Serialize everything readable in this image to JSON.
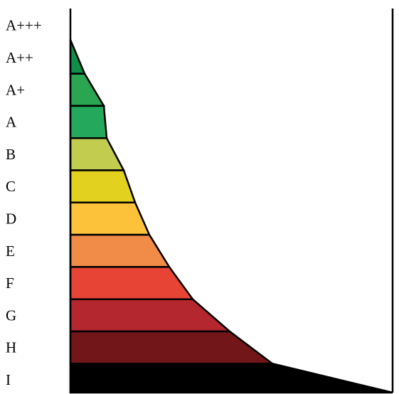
{
  "chart_data": {
    "type": "area",
    "title": "",
    "xlabel": "",
    "ylabel": "",
    "categories": [
      "A+++",
      "A++",
      "A+",
      "A",
      "B",
      "C",
      "D",
      "E",
      "F",
      "G",
      "H",
      "I"
    ],
    "band_colors": [
      "#ffffff",
      "#0f8f4a",
      "#2aa652",
      "#24a85c",
      "#c2cc4e",
      "#e2d21f",
      "#fbc23a",
      "#f08c47",
      "#e84435",
      "#b4272f",
      "#73161a",
      "#000000"
    ],
    "stroke_color": "#000000",
    "grid": false,
    "legend": "none"
  }
}
